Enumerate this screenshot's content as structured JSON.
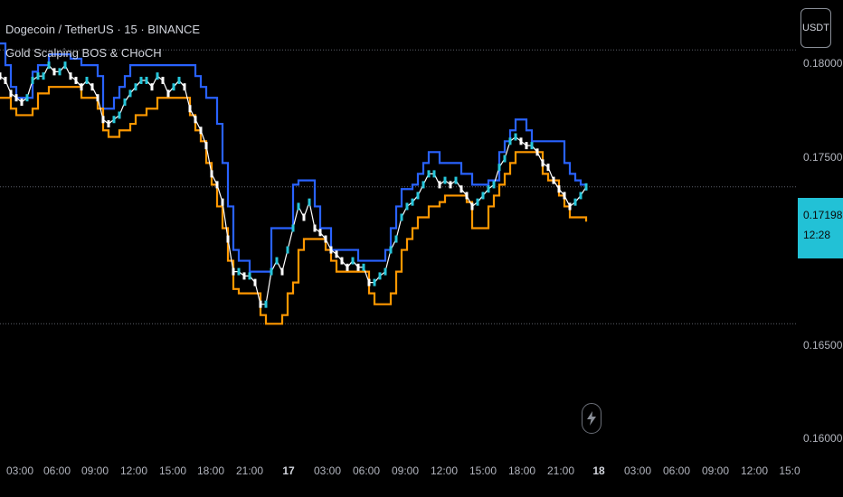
{
  "header": {
    "symbol_title": "Dogecoin / TetherUS · 15 · BINANCE",
    "indicator_name": "Gold Scalping BOS & CHoCH"
  },
  "toolbar": {
    "currency_label": "USDT"
  },
  "price_badge": {
    "price": "0.17198",
    "countdown": "12:28",
    "color": "#22c1d6"
  },
  "chart_data": {
    "type": "line",
    "title": "Dogecoin / TetherUS · 15 · BINANCE",
    "x_tick_labels": [
      "03:00",
      "06:00",
      "09:00",
      "12:00",
      "15:00",
      "18:00",
      "21:00",
      "17",
      "03:00",
      "06:00",
      "09:00",
      "12:00",
      "15:00",
      "18:00",
      "21:00",
      "18",
      "03:00",
      "06:00",
      "09:00",
      "12:00",
      "15:0"
    ],
    "y_tick_labels": [
      "0.18000",
      "0.17500",
      "0.16500",
      "0.16000"
    ],
    "ylim": [
      0.1595,
      0.1805
    ],
    "horizontal_levels": [
      0.1782,
      0.1719,
      0.1656
    ],
    "grid": false,
    "colors": {
      "upper": "#2962ff",
      "lower": "#ff9800",
      "price": "#ffffff",
      "price_alt": "#26c6da"
    },
    "series": [
      {
        "name": "",
        "x": [
          0,
          6,
          12,
          18,
          24,
          30,
          36,
          42,
          48,
          54,
          60,
          66,
          72,
          78,
          84,
          90,
          96,
          102,
          108,
          114,
          120,
          126,
          132,
          138,
          144,
          150,
          156,
          162,
          168,
          174,
          180,
          186,
          192,
          198,
          204,
          210,
          216,
          222,
          228,
          234,
          240,
          246,
          252,
          258,
          264,
          270,
          276,
          282,
          288,
          294,
          300,
          306,
          312,
          318,
          324,
          330,
          336,
          342,
          348,
          354,
          360,
          366,
          372,
          378,
          384,
          390,
          396,
          402,
          408,
          414,
          420,
          426,
          432,
          438,
          444,
          450,
          456,
          462,
          468,
          474,
          480,
          486,
          492,
          498,
          504,
          510,
          516,
          522,
          528,
          534,
          540,
          546,
          552,
          558,
          564,
          570,
          576,
          582,
          588,
          594,
          600,
          606,
          612,
          618,
          624,
          630,
          636,
          642,
          648
        ],
        "values": [
          0.1785,
          0.1775,
          0.1765,
          0.176,
          0.176,
          0.176,
          0.1772,
          0.1775,
          0.1775,
          0.178,
          0.178,
          0.178,
          0.178,
          0.1778,
          0.1778,
          0.1775,
          0.1775,
          0.1775,
          0.177,
          0.1755,
          0.1755,
          0.176,
          0.1765,
          0.177,
          0.1775,
          0.1775,
          0.1775,
          0.1775,
          0.1775,
          0.1775,
          0.1775,
          0.1775,
          0.1775,
          0.1775,
          0.1775,
          0.1775,
          0.177,
          0.1765,
          0.176,
          0.176,
          0.1748,
          0.173,
          0.171,
          0.169,
          0.1685,
          0.1685,
          0.168,
          0.168,
          0.168,
          0.168,
          0.17,
          0.17,
          0.17,
          0.17,
          0.172,
          0.1722,
          0.1722,
          0.1722,
          0.171,
          0.17,
          0.17,
          0.169,
          0.169,
          0.169,
          0.169,
          0.169,
          0.1685,
          0.1685,
          0.1685,
          0.1685,
          0.1685,
          0.169,
          0.17,
          0.171,
          0.1718,
          0.1718,
          0.172,
          0.1725,
          0.173,
          0.1735,
          0.1735,
          0.173,
          0.173,
          0.173,
          0.173,
          0.1725,
          0.1725,
          0.172,
          0.172,
          0.172,
          0.1722,
          0.1722,
          0.1735,
          0.174,
          0.1745,
          0.175,
          0.175,
          0.1745,
          0.174,
          0.174,
          0.174,
          0.174,
          0.174,
          0.174,
          0.173,
          0.1725,
          0.1722,
          0.172,
          0.1719
        ]
      },
      {
        "name": "",
        "x": [
          0,
          6,
          12,
          18,
          24,
          30,
          36,
          42,
          48,
          54,
          60,
          66,
          72,
          78,
          84,
          90,
          96,
          102,
          108,
          114,
          120,
          126,
          132,
          138,
          144,
          150,
          156,
          162,
          168,
          174,
          180,
          186,
          192,
          198,
          204,
          210,
          216,
          222,
          228,
          234,
          240,
          246,
          252,
          258,
          264,
          270,
          276,
          282,
          288,
          294,
          300,
          306,
          312,
          318,
          324,
          330,
          336,
          342,
          348,
          354,
          360,
          366,
          372,
          378,
          384,
          390,
          396,
          402,
          408,
          414,
          420,
          426,
          432,
          438,
          444,
          450,
          456,
          462,
          468,
          474,
          480,
          486,
          492,
          498,
          504,
          510,
          516,
          522,
          528,
          534,
          540,
          546,
          552,
          558,
          564,
          570,
          576,
          582,
          588,
          594,
          600,
          606,
          612,
          618,
          624,
          630,
          636,
          642,
          648
        ],
        "values": [
          0.176,
          0.176,
          0.1755,
          0.1752,
          0.1752,
          0.1752,
          0.1755,
          0.1762,
          0.1762,
          0.1765,
          0.1765,
          0.1765,
          0.1765,
          0.1765,
          0.1765,
          0.176,
          0.176,
          0.176,
          0.1755,
          0.1745,
          0.1742,
          0.1742,
          0.1745,
          0.1745,
          0.1748,
          0.1752,
          0.1752,
          0.1755,
          0.1755,
          0.176,
          0.176,
          0.176,
          0.176,
          0.176,
          0.176,
          0.1752,
          0.1745,
          0.174,
          0.173,
          0.172,
          0.171,
          0.17,
          0.1685,
          0.1672,
          0.167,
          0.167,
          0.167,
          0.167,
          0.166,
          0.1656,
          0.1656,
          0.1656,
          0.166,
          0.167,
          0.1675,
          0.169,
          0.1695,
          0.1695,
          0.1695,
          0.1695,
          0.169,
          0.1685,
          0.168,
          0.168,
          0.168,
          0.168,
          0.168,
          0.168,
          0.167,
          0.1665,
          0.1665,
          0.1665,
          0.167,
          0.168,
          0.169,
          0.1695,
          0.17,
          0.1705,
          0.1705,
          0.171,
          0.171,
          0.1712,
          0.1715,
          0.1715,
          0.1715,
          0.1715,
          0.1712,
          0.17,
          0.17,
          0.17,
          0.171,
          0.1715,
          0.172,
          0.1725,
          0.173,
          0.1735,
          0.1735,
          0.1735,
          0.1735,
          0.1735,
          0.1725,
          0.1722,
          0.1722,
          0.1715,
          0.171,
          0.1705,
          0.1705,
          0.1705,
          0.1703
        ]
      },
      {
        "name": "",
        "x": [
          0,
          6,
          12,
          18,
          24,
          30,
          36,
          42,
          48,
          54,
          60,
          66,
          72,
          78,
          84,
          90,
          96,
          102,
          108,
          114,
          120,
          126,
          132,
          138,
          144,
          150,
          156,
          162,
          168,
          174,
          180,
          186,
          192,
          198,
          204,
          210,
          216,
          222,
          228,
          234,
          240,
          246,
          252,
          258,
          264,
          270,
          276,
          282,
          288,
          294,
          300,
          306,
          312,
          318,
          324,
          330,
          336,
          342,
          348,
          354,
          360,
          366,
          372,
          378,
          384,
          390,
          396,
          402,
          408,
          414,
          420,
          426,
          432,
          438,
          444,
          450,
          456,
          462,
          468,
          474,
          480,
          486,
          492,
          498,
          504,
          510,
          516,
          522,
          528,
          534,
          540,
          546,
          552,
          558,
          564,
          570,
          576,
          582,
          588,
          594,
          600,
          606,
          612,
          618,
          624,
          630,
          636,
          642,
          648
        ],
        "values": [
          0.177,
          0.1768,
          0.1762,
          0.176,
          0.1758,
          0.176,
          0.1768,
          0.177,
          0.177,
          0.1775,
          0.1772,
          0.1772,
          0.1775,
          0.177,
          0.1768,
          0.1765,
          0.1768,
          0.1765,
          0.176,
          0.175,
          0.1748,
          0.175,
          0.1752,
          0.1758,
          0.1762,
          0.1765,
          0.1768,
          0.1768,
          0.1765,
          0.177,
          0.1768,
          0.1762,
          0.1765,
          0.1768,
          0.1765,
          0.1755,
          0.175,
          0.1745,
          0.1738,
          0.1725,
          0.172,
          0.1712,
          0.1695,
          0.168,
          0.168,
          0.1678,
          0.1678,
          0.1675,
          0.1665,
          0.1665,
          0.168,
          0.1685,
          0.168,
          0.169,
          0.17,
          0.171,
          0.1705,
          0.1712,
          0.17,
          0.1698,
          0.1695,
          0.169,
          0.1688,
          0.1685,
          0.1682,
          0.1685,
          0.1682,
          0.1682,
          0.1675,
          0.1675,
          0.1678,
          0.168,
          0.169,
          0.1695,
          0.1705,
          0.171,
          0.1712,
          0.1715,
          0.172,
          0.1725,
          0.1725,
          0.172,
          0.1722,
          0.172,
          0.1722,
          0.1718,
          0.1715,
          0.171,
          0.1712,
          0.1715,
          0.1718,
          0.172,
          0.1728,
          0.1732,
          0.174,
          0.1742,
          0.174,
          0.1738,
          0.1738,
          0.1735,
          0.173,
          0.1728,
          0.1722,
          0.1718,
          0.1715,
          0.171,
          0.1712,
          0.1715,
          0.1719
        ]
      }
    ]
  }
}
